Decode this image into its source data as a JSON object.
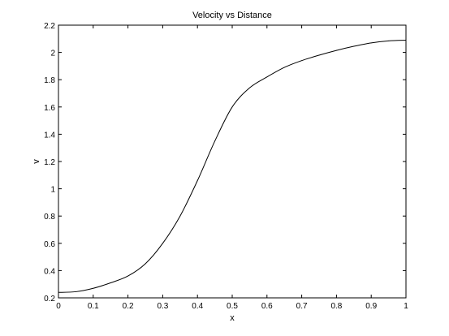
{
  "chart_data": {
    "type": "line",
    "title": "Velocity vs Distance",
    "xlabel": "x",
    "ylabel": "v",
    "xlim": [
      0,
      1
    ],
    "ylim": [
      0.2,
      2.2
    ],
    "grid": false,
    "x_ticks": [
      "0",
      "0.1",
      "0.2",
      "0.3",
      "0.4",
      "0.5",
      "0.6",
      "0.7",
      "0.8",
      "0.9",
      "1"
    ],
    "y_ticks": [
      "0.2",
      "0.4",
      "0.6",
      "0.8",
      "1",
      "1.2",
      "1.4",
      "1.6",
      "1.8",
      "2",
      "2.2"
    ],
    "series": [
      {
        "color": "#000000",
        "x": [
          0,
          0.05,
          0.1,
          0.15,
          0.2,
          0.25,
          0.3,
          0.35,
          0.4,
          0.45,
          0.5,
          0.55,
          0.6,
          0.65,
          0.7,
          0.75,
          0.8,
          0.85,
          0.9,
          0.95,
          1.0
        ],
        "y": [
          0.24,
          0.245,
          0.27,
          0.31,
          0.36,
          0.45,
          0.6,
          0.8,
          1.06,
          1.35,
          1.6,
          1.74,
          1.82,
          1.89,
          1.94,
          1.98,
          2.015,
          2.045,
          2.07,
          2.085,
          2.09
        ]
      }
    ]
  }
}
